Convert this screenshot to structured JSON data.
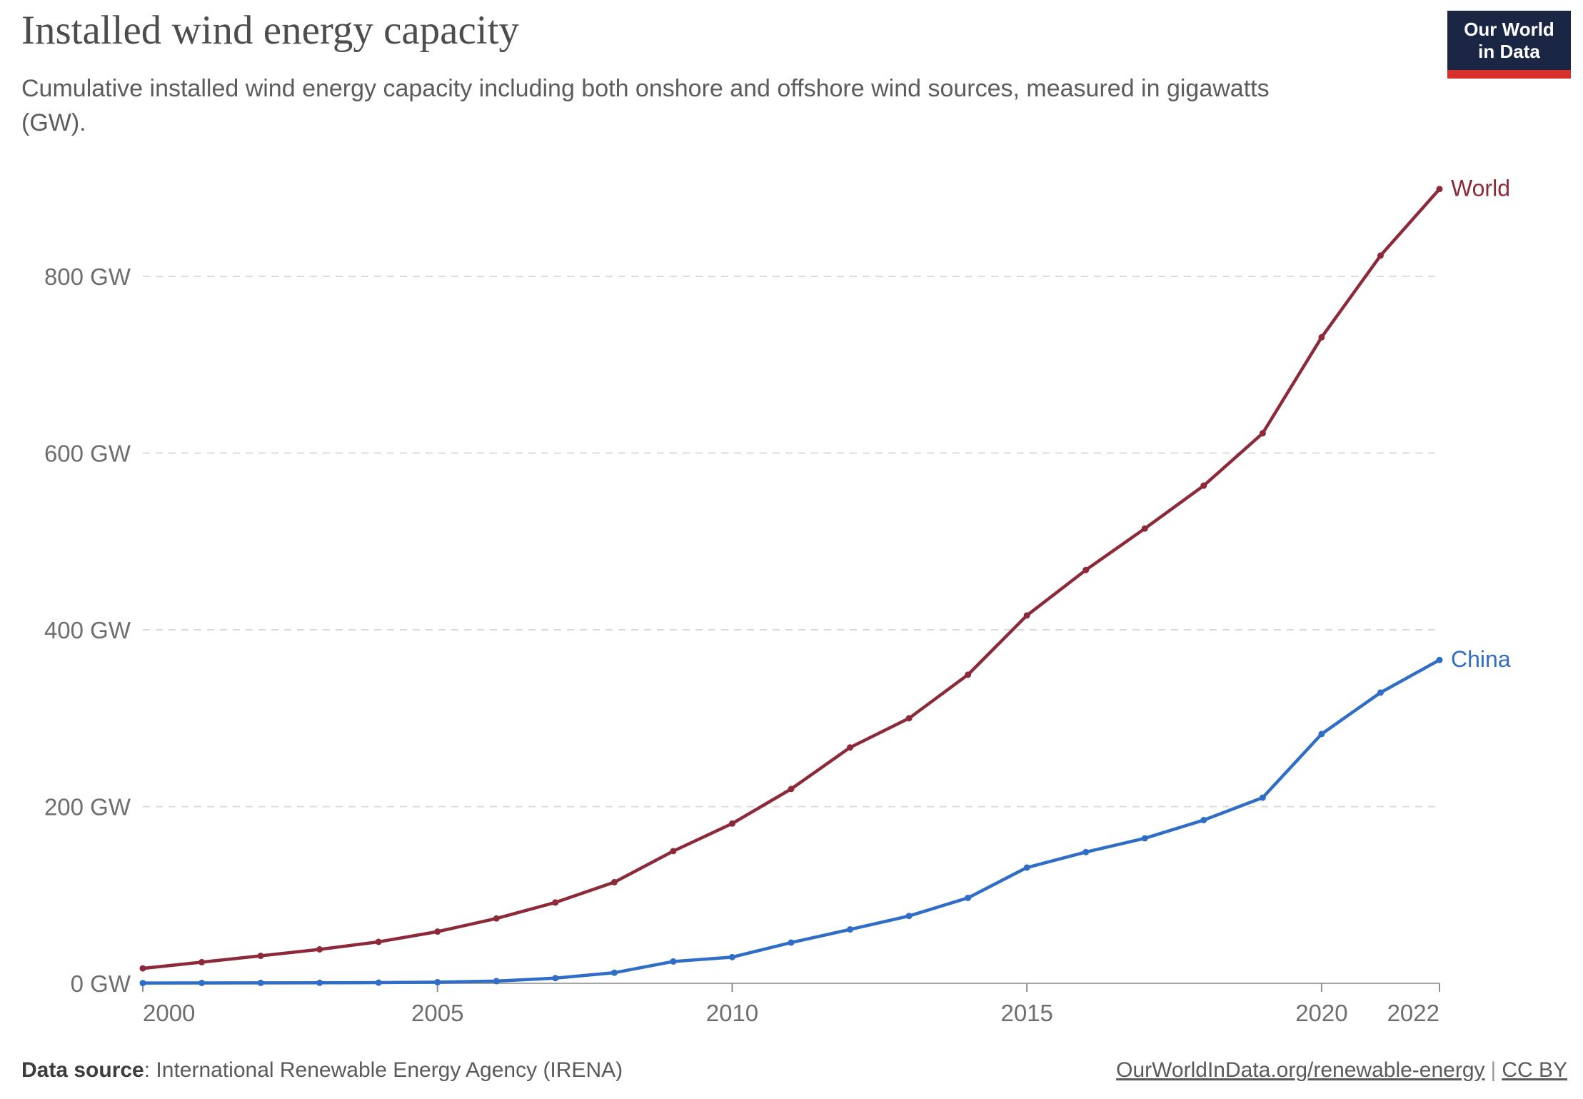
{
  "logo": {
    "line1": "Our World",
    "line2": "in Data",
    "bg_color": "#1b2544",
    "accent_color": "#d7302a"
  },
  "chart_data": {
    "type": "line",
    "title": "Installed wind energy capacity",
    "subtitle_lines": [
      "Cumulative installed wind energy capacity including both onshore and offshore wind sources, measured in gigawatts",
      "(GW)."
    ],
    "x": [
      2000,
      2001,
      2002,
      2003,
      2004,
      2005,
      2006,
      2007,
      2008,
      2009,
      2010,
      2011,
      2012,
      2013,
      2014,
      2015,
      2016,
      2017,
      2018,
      2019,
      2020,
      2021,
      2022
    ],
    "series": [
      {
        "name": "World",
        "color": "#8c2a39",
        "values": [
          16.9,
          23.9,
          31.1,
          38.4,
          46.9,
          58.5,
          73.4,
          91.5,
          114.4,
          149.6,
          180.8,
          219.9,
          266.9,
          299.9,
          349.2,
          416.3,
          467.7,
          514.6,
          563.2,
          622.4,
          731.1,
          823.5,
          898.8
        ]
      },
      {
        "name": "China",
        "color": "#2f6dc6",
        "values": [
          0.3,
          0.4,
          0.5,
          0.6,
          0.8,
          1.3,
          2.5,
          5.9,
          12.0,
          24.7,
          29.6,
          46.1,
          61.0,
          76.2,
          96.7,
          131.0,
          148.5,
          164.1,
          184.7,
          210.1,
          282.1,
          329.0,
          365.9
        ]
      }
    ],
    "xlim": [
      2000,
      2022
    ],
    "ylim": [
      0,
      920
    ],
    "yticks": [
      0,
      200,
      400,
      600,
      800
    ],
    "ytick_labels": [
      "0 GW",
      "200 GW",
      "400 GW",
      "600 GW",
      "800 GW"
    ],
    "xticks": [
      2000,
      2005,
      2010,
      2015,
      2020,
      2022
    ],
    "xtick_labels": [
      "2000",
      "2005",
      "2010",
      "2015",
      "2020",
      "2022"
    ],
    "xlabel": "",
    "ylabel": "",
    "grid": "horizontal dashed",
    "legend_position": "line-end labels"
  },
  "footer": {
    "source_label": "Data source",
    "source_rest": ": International Renewable Energy Agency (IRENA)",
    "link_url": "OurWorldInData.org/renewable-energy",
    "separator": "|",
    "license": "CC BY"
  }
}
